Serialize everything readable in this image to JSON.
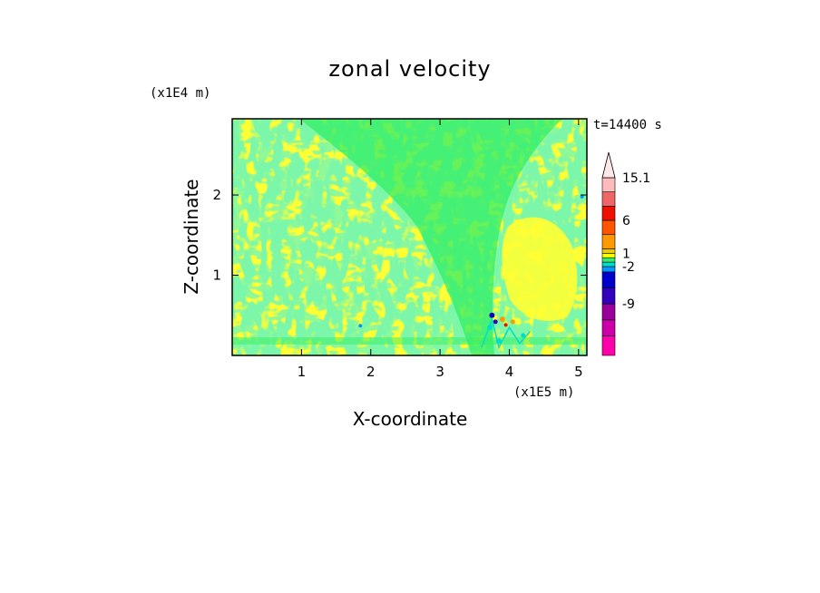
{
  "chart_data": {
    "type": "heatmap",
    "title": "zonal velocity",
    "xlabel": "X-coordinate",
    "ylabel": "Z-coordinate",
    "x_unit": "(x1E5 m)",
    "y_unit": "(x1E4 m)",
    "time_label": "t=14400 s",
    "xlim": [
      0,
      5.12
    ],
    "ylim": [
      0,
      2.95
    ],
    "x_ticks": [
      "1",
      "2",
      "3",
      "4",
      "5"
    ],
    "y_ticks": [
      "1",
      "2"
    ],
    "x_tick_values": [
      1,
      2,
      3,
      4,
      5
    ],
    "y_tick_values": [
      1,
      2
    ],
    "colorbar": {
      "levels": [
        {
          "label": "",
          "color": "#ff00aa"
        },
        {
          "label": "",
          "color": "#cc00aa"
        },
        {
          "label": "-9",
          "color": "#990099"
        },
        {
          "label": "",
          "color": "#3300bb"
        },
        {
          "label": "",
          "color": "#0000cc"
        },
        {
          "label": "-2",
          "color": "#0099ff"
        },
        {
          "label": "",
          "color": "#00ddcc"
        },
        {
          "label": "",
          "color": "#33ee66"
        },
        {
          "label": "1",
          "color": "#ffff00"
        },
        {
          "label": "",
          "color": "#eecc00"
        },
        {
          "label": "",
          "color": "#ff9900"
        },
        {
          "label": "6",
          "color": "#ff5500"
        },
        {
          "label": "",
          "color": "#ee1100"
        },
        {
          "label": "",
          "color": "#ee6666"
        },
        {
          "label": "15.1",
          "color": "#ffbbbb"
        }
      ],
      "over_color": "#ffe8e8"
    },
    "field": {
      "background": "#ffff33",
      "dominant": "#33ee66",
      "description_values": "mostly between -2 and 1, small pockets of -9 to 6 near x=3.7-3.9, z<0.6"
    }
  }
}
